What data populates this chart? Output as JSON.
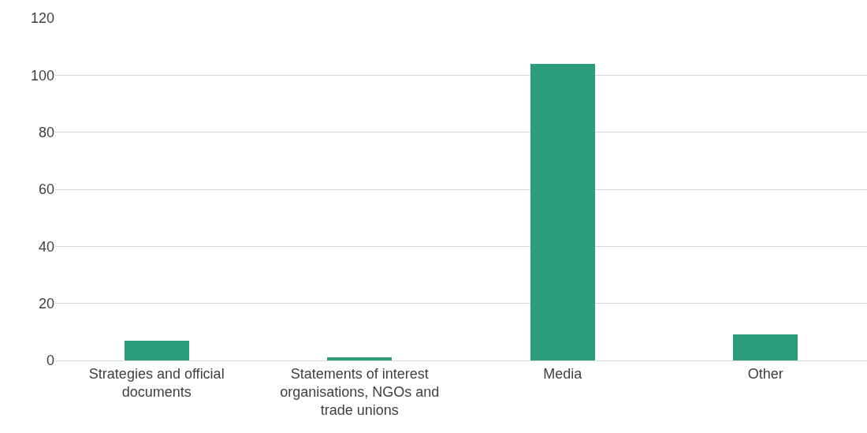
{
  "chart_data": {
    "type": "bar",
    "categories": [
      "Strategies and official documents",
      "Statements of interest organisations, NGOs and trade unions",
      "Media",
      "Other"
    ],
    "values": [
      7,
      1,
      104,
      9
    ],
    "color": "#2a9d7c",
    "ylim": [
      0,
      120
    ],
    "yticks": [
      0,
      20,
      40,
      60,
      80,
      100,
      120
    ],
    "grid": "y"
  }
}
